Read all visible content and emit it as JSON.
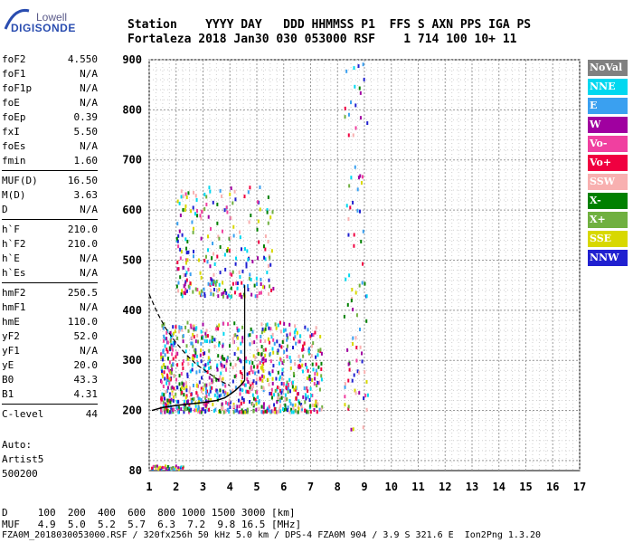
{
  "logo": {
    "top": "Lowell",
    "bottom": "DIGISONDE"
  },
  "header": {
    "line1": "Station    YYYY DAY   DDD HHMMSS P1  FFS S AXN PPS IGA PS",
    "line2": "Fortaleza 2018 Jan30 030 053000 RSF    1 714 100 10+ 11"
  },
  "params_groups": [
    [
      {
        "k": "foF2",
        "v": "4.550"
      },
      {
        "k": "foF1",
        "v": "N/A"
      },
      {
        "k": "foF1p",
        "v": "N/A"
      },
      {
        "k": "foE",
        "v": "N/A"
      },
      {
        "k": "foEp",
        "v": "0.39"
      },
      {
        "k": "fxI",
        "v": "5.50"
      },
      {
        "k": "foEs",
        "v": "N/A"
      },
      {
        "k": "fmin",
        "v": "1.60"
      }
    ],
    [
      {
        "k": "MUF(D)",
        "v": "16.50"
      },
      {
        "k": "M(D)",
        "v": "3.63"
      },
      {
        "k": "D",
        "v": "N/A"
      }
    ],
    [
      {
        "k": "h`F",
        "v": "210.0"
      },
      {
        "k": "h`F2",
        "v": "210.0"
      },
      {
        "k": "h`E",
        "v": "N/A"
      },
      {
        "k": "h`Es",
        "v": "N/A"
      }
    ],
    [
      {
        "k": "hmF2",
        "v": "250.5"
      },
      {
        "k": "hmF1",
        "v": "N/A"
      },
      {
        "k": "hmE",
        "v": "110.0"
      },
      {
        "k": "yF2",
        "v": "52.0"
      },
      {
        "k": "yF1",
        "v": "N/A"
      },
      {
        "k": "yE",
        "v": "20.0"
      },
      {
        "k": "B0",
        "v": "43.3"
      },
      {
        "k": "B1",
        "v": "4.31"
      }
    ],
    [
      {
        "k": "C-level",
        "v": "44"
      }
    ]
  ],
  "autoscale": [
    "Auto:",
    "Artist5",
    "500200"
  ],
  "legend": [
    {
      "label": "NoVal",
      "color": "#808080",
      "text": "#ffffff"
    },
    {
      "label": "NNE",
      "color": "#00d8f0",
      "text": "#ffffff"
    },
    {
      "label": "E",
      "color": "#3aa0f0",
      "text": "#ffffff"
    },
    {
      "label": "W",
      "color": "#a000a0",
      "text": "#ffffff"
    },
    {
      "label": "Vo-",
      "color": "#f040a0",
      "text": "#ffffff"
    },
    {
      "label": "Vo+",
      "color": "#f00040",
      "text": "#ffffff"
    },
    {
      "label": "SSW",
      "color": "#f8b0b0",
      "text": "#ffffff"
    },
    {
      "label": "X-",
      "color": "#008000",
      "text": "#ffffff"
    },
    {
      "label": "X+",
      "color": "#70b040",
      "text": "#ffffff"
    },
    {
      "label": "SSE",
      "color": "#d8d800",
      "text": "#ffffff"
    },
    {
      "label": "NNW",
      "color": "#2020d0",
      "text": "#ffffff"
    }
  ],
  "footer": {
    "line1": "D     100  200  400  600  800 1000 1500 3000 [km]",
    "line2": "MUF   4.9  5.0  5.2  5.7  6.3  7.2  9.8 16.5 [MHz]",
    "line3": "FZA0M_2018030053000.RSF / 320fx256h 50 kHz 5.0 km / DPS-4 FZA0M 904 / 3.9 S 321.6 E  Ion2Png 1.3.20"
  },
  "chart_data": {
    "type": "scatter",
    "title": "",
    "xlabel": "",
    "ylabel": "",
    "xlim": [
      1,
      17
    ],
    "ylim": [
      80,
      900
    ],
    "x_ticks": [
      1,
      2,
      3,
      4,
      5,
      6,
      7,
      8,
      9,
      10,
      11,
      12,
      13,
      14,
      15,
      16,
      17
    ],
    "y_ticks": [
      80,
      200,
      300,
      400,
      500,
      600,
      700,
      800,
      900
    ],
    "grid": true,
    "legend_position": "right",
    "ionogram_trace": {
      "x": [
        1.1,
        1.5,
        2.0,
        2.5,
        3.0,
        3.5,
        3.8,
        4.0,
        4.2,
        4.4,
        4.55
      ],
      "y": [
        200,
        206,
        210,
        213,
        216,
        220,
        225,
        232,
        240,
        250,
        260
      ]
    },
    "muf_curve": {
      "x": [
        1.0,
        1.3,
        1.6,
        2.0,
        2.4,
        2.8,
        3.2,
        3.6,
        4.0
      ],
      "y": [
        432,
        395,
        365,
        335,
        310,
        290,
        275,
        260,
        250
      ]
    },
    "echo_clusters": [
      {
        "name": "F-layer",
        "xmin": 1.4,
        "xmax": 7.4,
        "ymin": 200,
        "ymax": 380,
        "n": 900
      },
      {
        "name": "F-multiple",
        "xmin": 2.0,
        "xmax": 5.6,
        "ymin": 430,
        "ymax": 650,
        "n": 260
      },
      {
        "name": "E-region",
        "xmin": 1.05,
        "xmax": 2.25,
        "ymin": 85,
        "ymax": 92,
        "n": 50
      },
      {
        "name": "Spread",
        "xmin": 8.2,
        "xmax": 9.1,
        "ymin": 160,
        "ymax": 900,
        "n": 90
      }
    ]
  }
}
